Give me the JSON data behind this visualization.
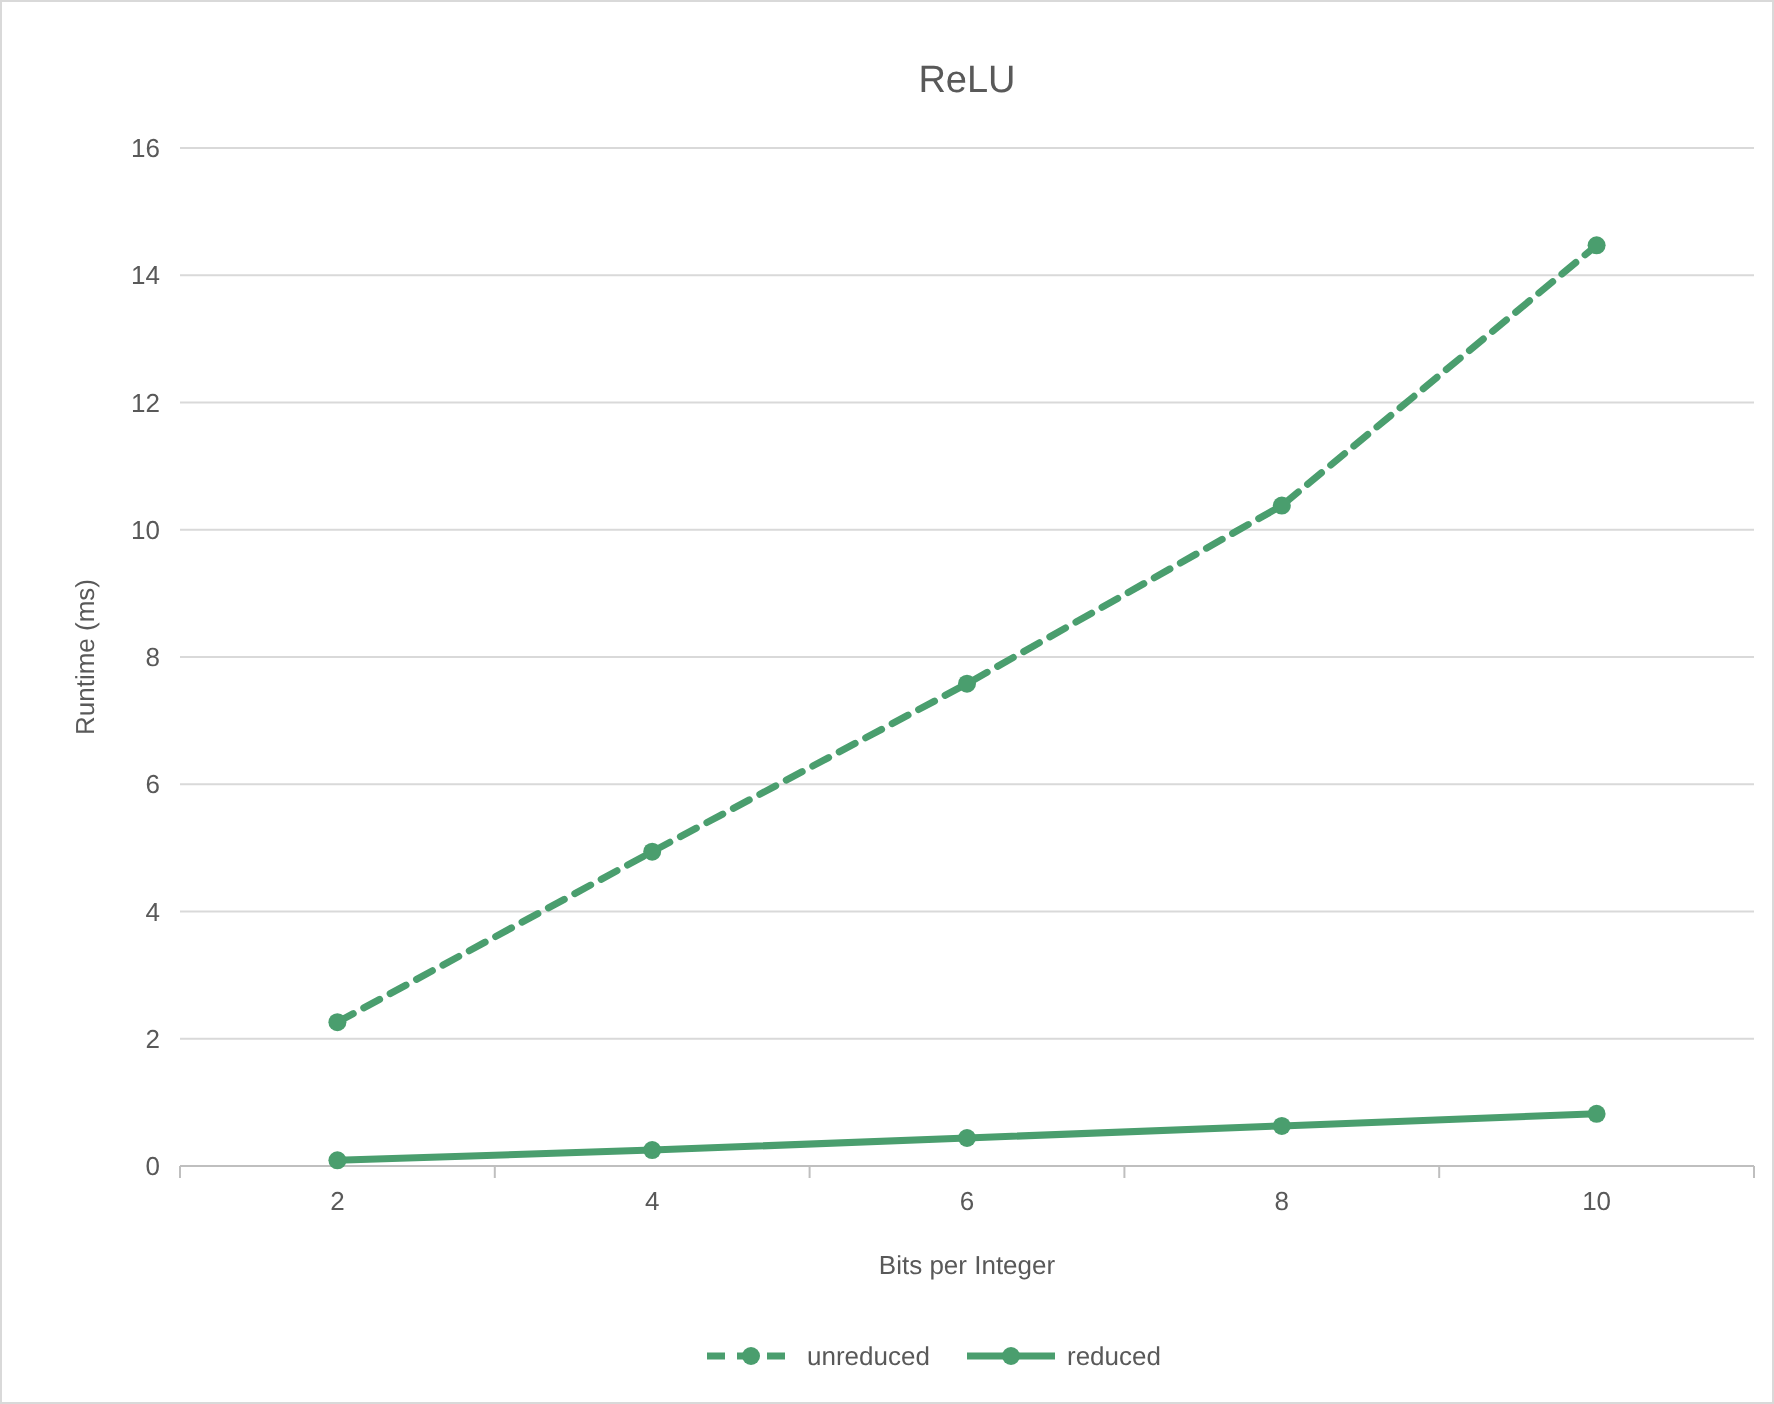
{
  "chart_data": {
    "type": "line",
    "title": "ReLU",
    "xlabel": "Bits per Integer",
    "ylabel": "Runtime (ms)",
    "categories": [
      "2",
      "4",
      "6",
      "8",
      "10"
    ],
    "series": [
      {
        "name": "unreduced",
        "color": "#4a9e6e",
        "values": [
          2.26,
          4.94,
          7.58,
          10.38,
          14.47
        ],
        "line_style": "dashed"
      },
      {
        "name": "reduced",
        "color": "#4a9e6e",
        "values": [
          0.09,
          0.25,
          0.44,
          0.63,
          0.82
        ],
        "line_style": "solid"
      }
    ],
    "ylim": [
      0,
      16
    ],
    "yticks": [
      0,
      2,
      4,
      6,
      8,
      10,
      12,
      14,
      16
    ],
    "grid": "y",
    "legend": "bottom",
    "marker": "circle"
  }
}
